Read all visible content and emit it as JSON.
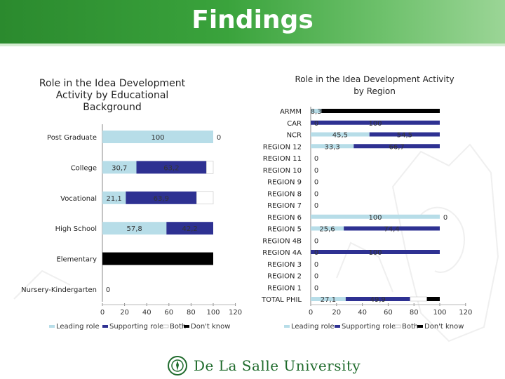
{
  "page": {
    "title": "Findings"
  },
  "footer": {
    "brand": "De La Salle University"
  },
  "colors": {
    "leading": "#b7dde8",
    "supporting": "#2e3192",
    "both": "#ffffff",
    "dont_know": "#000000"
  },
  "chart_data": [
    {
      "type": "bar",
      "orientation": "horizontal",
      "stacked": true,
      "title": "Role in the Idea Development Activity by Educational Background",
      "categories": [
        "Post Graduate",
        "College",
        "Vocational",
        "High School",
        "Elementary",
        "Nursery-Kindergarten"
      ],
      "series": [
        {
          "name": "Leading role",
          "values": [
            100,
            30.7,
            21.1,
            57.8,
            0,
            0
          ]
        },
        {
          "name": "Supporting role",
          "values": [
            0,
            63.2,
            63.9,
            42.2,
            0,
            0
          ]
        },
        {
          "name": "Both",
          "values": [
            0,
            6.1,
            15.0,
            0,
            0,
            0
          ]
        },
        {
          "name": "Don't know",
          "values": [
            0,
            0,
            0,
            0,
            100,
            0
          ]
        }
      ],
      "data_labels": [
        {
          "category": "Post Graduate",
          "series": "Leading role",
          "text": "100"
        },
        {
          "category": "Post Graduate",
          "series": "Supporting role",
          "text": "0"
        },
        {
          "category": "College",
          "series": "Leading role",
          "text": "30,7"
        },
        {
          "category": "College",
          "series": "Supporting role",
          "text": "63,2"
        },
        {
          "category": "Vocational",
          "series": "Leading role",
          "text": "21,1"
        },
        {
          "category": "Vocational",
          "series": "Supporting role",
          "text": "63,9"
        },
        {
          "category": "High School",
          "series": "Leading role",
          "text": "57,8"
        },
        {
          "category": "High School",
          "series": "Supporting role",
          "text": "42,2"
        },
        {
          "category": "Nursery-Kindergarten",
          "series": "Leading role",
          "text": "0"
        }
      ],
      "xlim": [
        0,
        120
      ],
      "xticks": [
        "0",
        "20",
        "40",
        "60",
        "80",
        "100",
        "120"
      ],
      "legend": [
        "Leading role",
        "Supporting role",
        "Both",
        "Don't know"
      ],
      "legend_position": "bottom"
    },
    {
      "type": "bar",
      "orientation": "horizontal",
      "stacked": true,
      "title": "Role in the Idea Development Activity by Region",
      "categories": [
        "ARMM",
        "CAR",
        "NCR",
        "REGION 12",
        "REGION 11",
        "REGION 10",
        "REGION 9",
        "REGION 8",
        "REGION 7",
        "REGION 6",
        "REGION 5",
        "REGION 4B",
        "REGION 4A",
        "REGION 3",
        "REGION 2",
        "REGION 1",
        "TOTAL PHIL"
      ],
      "series": [
        {
          "name": "Leading role",
          "values": [
            8.3,
            0,
            45.5,
            33.3,
            0,
            0,
            0,
            0,
            0,
            100,
            25.6,
            0,
            0,
            0,
            0,
            0,
            27.1
          ]
        },
        {
          "name": "Supporting role",
          "values": [
            0,
            100,
            54.5,
            66.7,
            0,
            0,
            0,
            0,
            0,
            0,
            74.4,
            0,
            100,
            0,
            0,
            0,
            49.9
          ]
        },
        {
          "name": "Both",
          "values": [
            0,
            0,
            0,
            0,
            0,
            0,
            0,
            0,
            0,
            0,
            0,
            0,
            0,
            0,
            0,
            0,
            13.0
          ]
        },
        {
          "name": "Don't know",
          "values": [
            91.7,
            0,
            0,
            0,
            0,
            0,
            0,
            0,
            0,
            0,
            0,
            0,
            0,
            0,
            0,
            0,
            10.0
          ]
        }
      ],
      "data_labels": [
        {
          "category": "ARMM",
          "series": "Leading role",
          "text": "8,3"
        },
        {
          "category": "CAR",
          "series": "Leading role",
          "text": "0"
        },
        {
          "category": "CAR",
          "series": "Supporting role",
          "text": "100"
        },
        {
          "category": "NCR",
          "series": "Leading role",
          "text": "45,5"
        },
        {
          "category": "NCR",
          "series": "Supporting role",
          "text": "54,5"
        },
        {
          "category": "REGION 12",
          "series": "Leading role",
          "text": "33,3"
        },
        {
          "category": "REGION 12",
          "series": "Supporting role",
          "text": "66,7"
        },
        {
          "category": "REGION 11",
          "series": "Leading role",
          "text": "0"
        },
        {
          "category": "REGION 10",
          "series": "Leading role",
          "text": "0"
        },
        {
          "category": "REGION 9",
          "series": "Leading role",
          "text": "0"
        },
        {
          "category": "REGION 8",
          "series": "Leading role",
          "text": "0"
        },
        {
          "category": "REGION 7",
          "series": "Leading role",
          "text": "0"
        },
        {
          "category": "REGION 6",
          "series": "Leading role",
          "text": "100"
        },
        {
          "category": "REGION 6",
          "series": "Supporting role",
          "text": "0"
        },
        {
          "category": "REGION 5",
          "series": "Leading role",
          "text": "25,6"
        },
        {
          "category": "REGION 5",
          "series": "Supporting role",
          "text": "74,4"
        },
        {
          "category": "REGION 4B",
          "series": "Leading role",
          "text": "0"
        },
        {
          "category": "REGION 4A",
          "series": "Leading role",
          "text": "0"
        },
        {
          "category": "REGION 4A",
          "series": "Supporting role",
          "text": "100"
        },
        {
          "category": "REGION 3",
          "series": "Leading role",
          "text": "0"
        },
        {
          "category": "REGION 2",
          "series": "Leading role",
          "text": "0"
        },
        {
          "category": "REGION 1",
          "series": "Leading role",
          "text": "0"
        },
        {
          "category": "TOTAL PHIL",
          "series": "Leading role",
          "text": "27,1"
        },
        {
          "category": "TOTAL PHIL",
          "series": "Supporting role",
          "text": "49,9"
        }
      ],
      "xlim": [
        0,
        120
      ],
      "xticks": [
        "0",
        "20",
        "40",
        "60",
        "80",
        "100",
        "120"
      ],
      "legend": [
        "Leading role",
        "Supporting role",
        "Both",
        "Don't know"
      ],
      "legend_position": "bottom"
    }
  ]
}
